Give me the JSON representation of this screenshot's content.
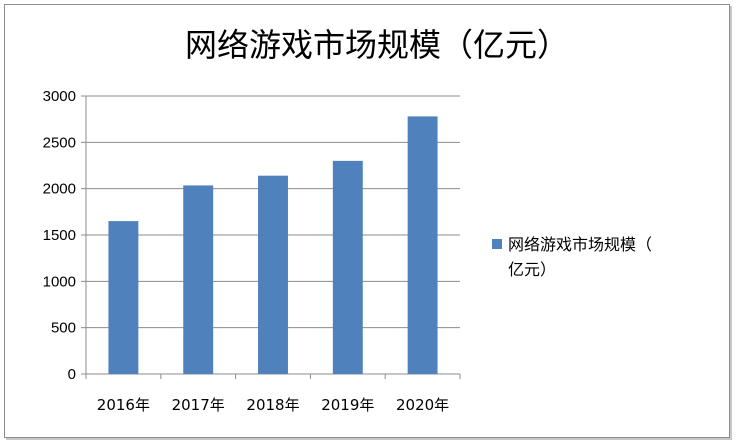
{
  "chart_data": {
    "type": "bar",
    "title": "网络游戏市场规模（亿元）",
    "categories": [
      "2016年",
      "2017年",
      "2018年",
      "2019年",
      "2020年"
    ],
    "series": [
      {
        "name": "网络游戏市场规模（亿元）",
        "values": [
          1650,
          2035,
          2140,
          2300,
          2780
        ],
        "color": "#4f81bd"
      }
    ],
    "ylim": [
      0,
      3000
    ],
    "yticks": [
      0,
      500,
      1000,
      1500,
      2000,
      2500,
      3000
    ],
    "grid": true,
    "legend_position": "right"
  }
}
